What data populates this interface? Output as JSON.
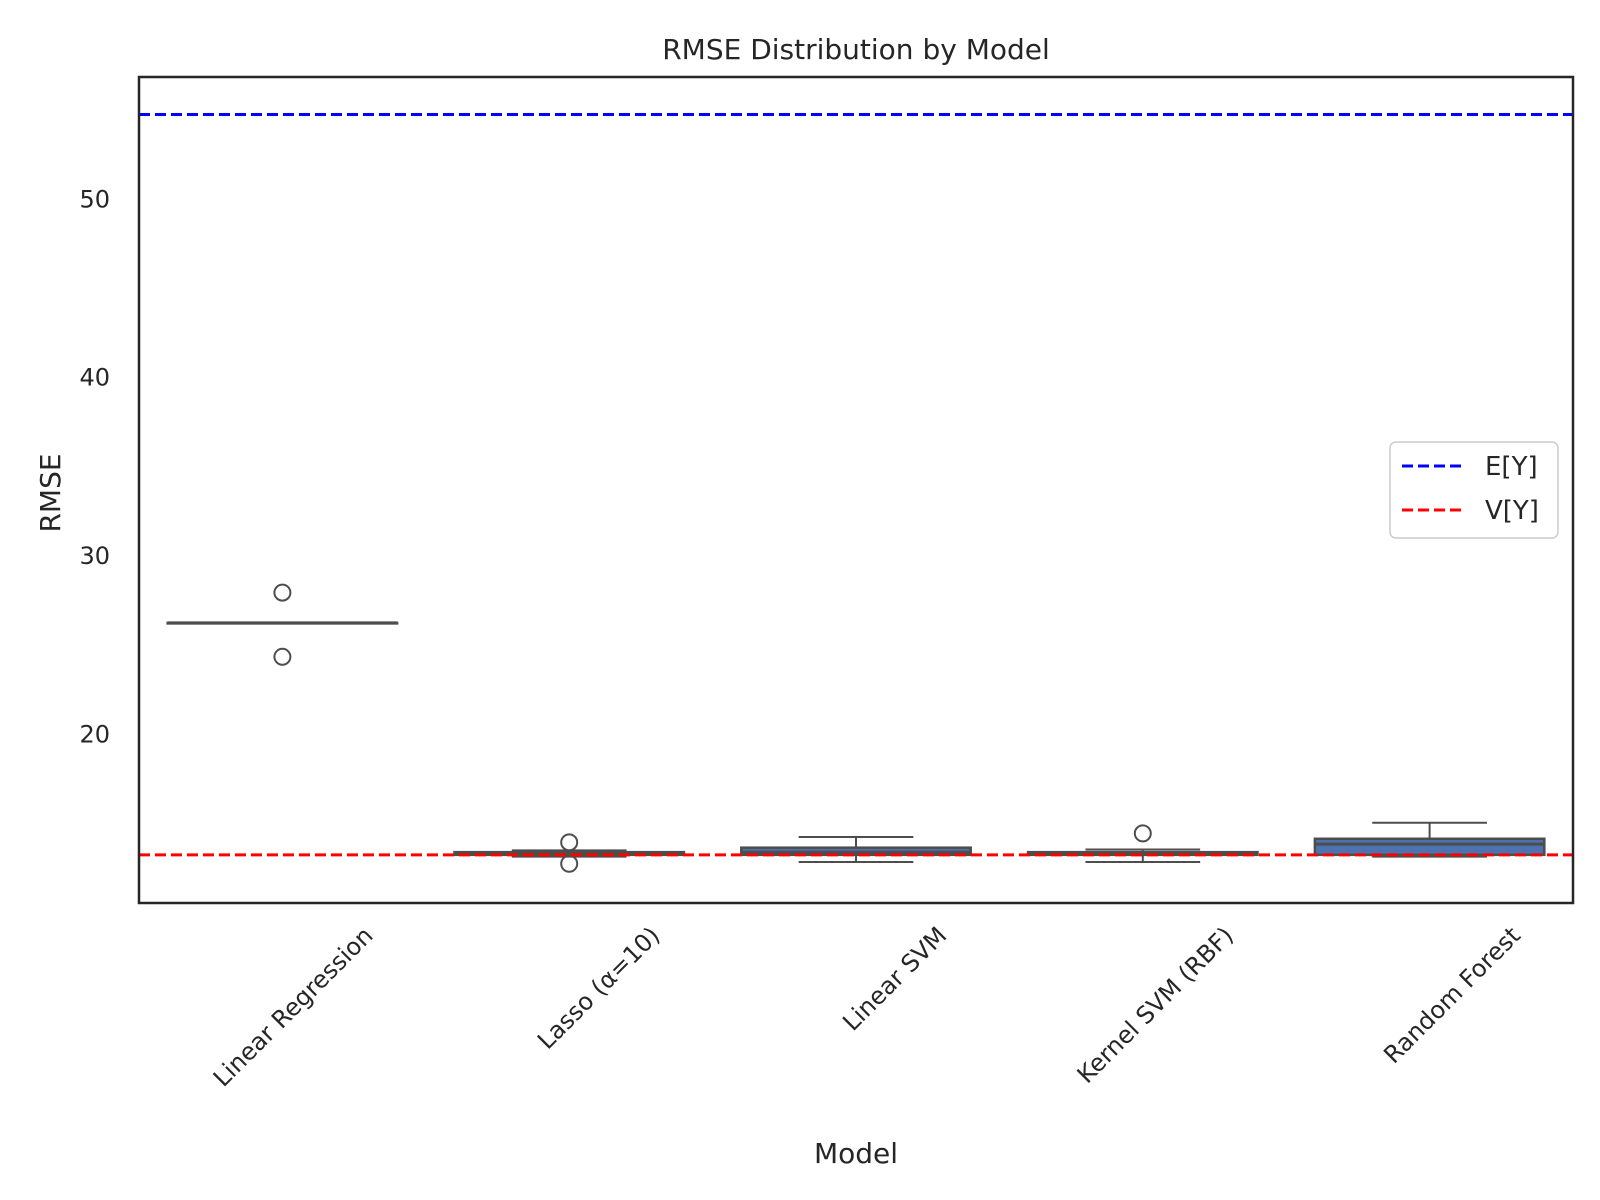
{
  "chart_data": {
    "type": "box",
    "title": "RMSE Distribution by Model",
    "xlabel": "Model",
    "ylabel": "RMSE",
    "ylim": [
      10.5,
      56.8
    ],
    "yticks": [
      20,
      30,
      40,
      50
    ],
    "ytick_labels": [
      "20",
      "30",
      "40",
      "50"
    ],
    "grid": false,
    "legend_position": "center-right",
    "box_color": "#4c72b0",
    "categories": [
      "Linear Regression",
      "Lasso (α=10)",
      "Linear SVM",
      "Kernel SVM (RBF)",
      "Random Forest"
    ],
    "boxes": [
      {
        "whislo": 26.2,
        "q1": 26.2,
        "med": 26.2,
        "q3": 26.2,
        "whishi": 26.2,
        "fliers": [
          27.9,
          24.3
        ]
      },
      {
        "whislo": 13.1,
        "q1": 13.2,
        "med": 13.3,
        "q3": 13.35,
        "whishi": 13.45,
        "fliers": [
          13.9,
          12.7
        ]
      },
      {
        "whislo": 12.8,
        "q1": 13.2,
        "med": 13.35,
        "q3": 13.6,
        "whishi": 14.2,
        "fliers": []
      },
      {
        "whislo": 12.8,
        "q1": 13.2,
        "med": 13.3,
        "q3": 13.35,
        "whishi": 13.5,
        "fliers": [
          14.4
        ]
      },
      {
        "whislo": 13.1,
        "q1": 13.2,
        "med": 13.8,
        "q3": 14.1,
        "whishi": 15.0,
        "fliers": []
      }
    ],
    "reference_lines": [
      {
        "label": "E[Y]",
        "value": 54.7,
        "color": "#0000ff",
        "style": "dashed"
      },
      {
        "label": "V[Y]",
        "value": 13.2,
        "color": "#ff0000",
        "style": "dashed"
      }
    ]
  }
}
